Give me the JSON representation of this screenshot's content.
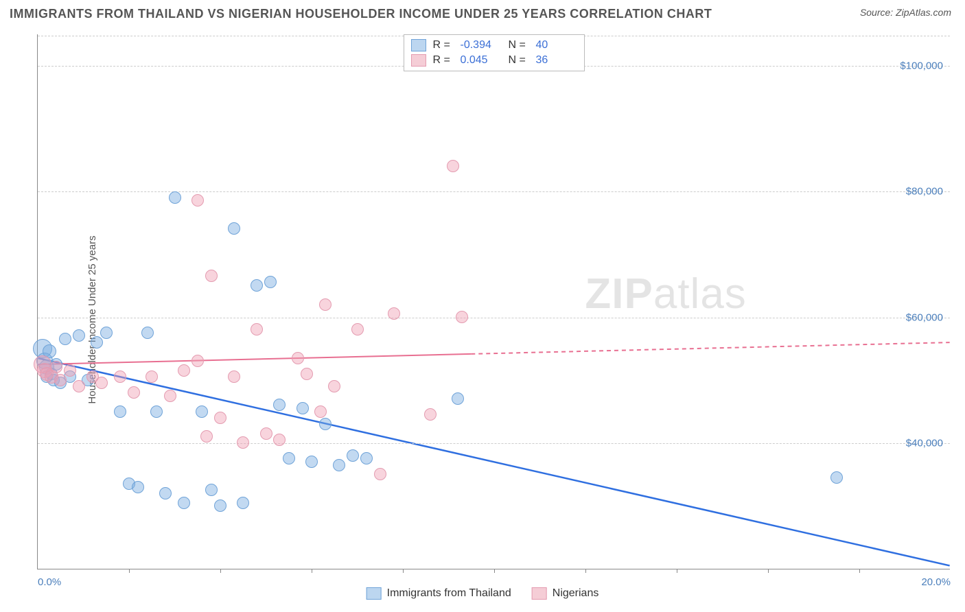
{
  "title": "IMMIGRANTS FROM THAILAND VS NIGERIAN HOUSEHOLDER INCOME UNDER 25 YEARS CORRELATION CHART",
  "source_label": "Source:",
  "source_name": "ZipAtlas.com",
  "ylabel": "Householder Income Under 25 years",
  "watermark": "ZIPatlas",
  "chart": {
    "type": "scatter",
    "background_color": "#ffffff",
    "grid_color": "#cccccc",
    "axis_color": "#888888",
    "xlim": [
      0,
      20
    ],
    "ylim": [
      20000,
      105000
    ],
    "x_tick_step": 2.0,
    "x_tick_labels": [
      {
        "x": 0.0,
        "label": "0.0%"
      },
      {
        "x": 20.0,
        "label": "20.0%"
      }
    ],
    "y_ticks": [
      {
        "y": 40000,
        "label": "$40,000"
      },
      {
        "y": 60000,
        "label": "$60,000"
      },
      {
        "y": 80000,
        "label": "$80,000"
      },
      {
        "y": 100000,
        "label": "$100,000"
      }
    ],
    "tick_label_color": "#4a7ebb",
    "label_fontsize": 15,
    "title_fontsize": 18,
    "title_color": "#555555"
  },
  "series": [
    {
      "name": "Immigrants from Thailand",
      "fill_color": "rgba(120,170,225,0.45)",
      "stroke_color": "#6fa3d8",
      "legend_swatch_fill": "#bcd6f0",
      "legend_swatch_border": "#6fa3d8",
      "marker_radius": 9,
      "r_value": "-0.394",
      "n_value": "40",
      "trend": {
        "color": "#2f6fe0",
        "width": 2.5,
        "solid_from_x": 0,
        "solid_to_x": 20,
        "y_at_x0": 53500,
        "y_at_x20": 20500
      },
      "points": [
        {
          "x": 0.1,
          "y": 55000,
          "r": 14
        },
        {
          "x": 0.15,
          "y": 53000,
          "r": 12
        },
        {
          "x": 0.2,
          "y": 52000,
          "r": 11
        },
        {
          "x": 0.25,
          "y": 54500,
          "r": 10
        },
        {
          "x": 0.3,
          "y": 51000,
          "r": 9
        },
        {
          "x": 0.35,
          "y": 50000,
          "r": 9
        },
        {
          "x": 0.4,
          "y": 52500,
          "r": 9
        },
        {
          "x": 0.5,
          "y": 49500,
          "r": 9
        },
        {
          "x": 0.6,
          "y": 56500,
          "r": 9
        },
        {
          "x": 0.7,
          "y": 50500,
          "r": 9
        },
        {
          "x": 0.9,
          "y": 57000,
          "r": 9
        },
        {
          "x": 1.1,
          "y": 50000,
          "r": 9
        },
        {
          "x": 1.3,
          "y": 56000,
          "r": 9
        },
        {
          "x": 1.5,
          "y": 57500,
          "r": 9
        },
        {
          "x": 1.8,
          "y": 45000,
          "r": 9
        },
        {
          "x": 2.0,
          "y": 33500,
          "r": 9
        },
        {
          "x": 2.2,
          "y": 33000,
          "r": 9
        },
        {
          "x": 2.4,
          "y": 57500,
          "r": 9
        },
        {
          "x": 2.6,
          "y": 45000,
          "r": 9
        },
        {
          "x": 2.8,
          "y": 32000,
          "r": 9
        },
        {
          "x": 3.0,
          "y": 79000,
          "r": 9
        },
        {
          "x": 3.2,
          "y": 30500,
          "r": 9
        },
        {
          "x": 3.6,
          "y": 45000,
          "r": 9
        },
        {
          "x": 3.8,
          "y": 32500,
          "r": 9
        },
        {
          "x": 4.0,
          "y": 30000,
          "r": 9
        },
        {
          "x": 4.3,
          "y": 74000,
          "r": 9
        },
        {
          "x": 4.5,
          "y": 30500,
          "r": 9
        },
        {
          "x": 4.8,
          "y": 65000,
          "r": 9
        },
        {
          "x": 5.1,
          "y": 65500,
          "r": 9
        },
        {
          "x": 5.3,
          "y": 46000,
          "r": 9
        },
        {
          "x": 5.5,
          "y": 37500,
          "r": 9
        },
        {
          "x": 5.8,
          "y": 45500,
          "r": 9
        },
        {
          "x": 6.0,
          "y": 37000,
          "r": 9
        },
        {
          "x": 6.3,
          "y": 43000,
          "r": 9
        },
        {
          "x": 6.6,
          "y": 36500,
          "r": 9
        },
        {
          "x": 6.9,
          "y": 38000,
          "r": 9
        },
        {
          "x": 7.2,
          "y": 37500,
          "r": 9
        },
        {
          "x": 9.2,
          "y": 47000,
          "r": 9
        },
        {
          "x": 17.5,
          "y": 34500,
          "r": 9
        },
        {
          "x": 0.2,
          "y": 50500,
          "r": 9
        }
      ]
    },
    {
      "name": "Nigerians",
      "fill_color": "rgba(240,160,180,0.45)",
      "stroke_color": "#e49bb0",
      "legend_swatch_fill": "#f5cdd6",
      "legend_swatch_border": "#e49bb0",
      "marker_radius": 9,
      "r_value": "0.045",
      "n_value": "36",
      "trend": {
        "color": "#e86f91",
        "width": 2,
        "solid_from_x": 0,
        "solid_to_x": 9.5,
        "dash_from_x": 9.5,
        "dash_to_x": 20,
        "y_at_x0": 52500,
        "y_at_x20": 56000
      },
      "points": [
        {
          "x": 0.1,
          "y": 52500,
          "r": 13
        },
        {
          "x": 0.15,
          "y": 51500,
          "r": 11
        },
        {
          "x": 0.2,
          "y": 51000,
          "r": 10
        },
        {
          "x": 0.3,
          "y": 50500,
          "r": 10
        },
        {
          "x": 0.4,
          "y": 52000,
          "r": 9
        },
        {
          "x": 0.5,
          "y": 50000,
          "r": 9
        },
        {
          "x": 0.7,
          "y": 51500,
          "r": 9
        },
        {
          "x": 0.9,
          "y": 49000,
          "r": 9
        },
        {
          "x": 1.2,
          "y": 50500,
          "r": 9
        },
        {
          "x": 1.4,
          "y": 49500,
          "r": 9
        },
        {
          "x": 1.8,
          "y": 50500,
          "r": 9
        },
        {
          "x": 2.1,
          "y": 48000,
          "r": 9
        },
        {
          "x": 2.5,
          "y": 50500,
          "r": 9
        },
        {
          "x": 2.9,
          "y": 47500,
          "r": 9
        },
        {
          "x": 3.2,
          "y": 51500,
          "r": 9
        },
        {
          "x": 3.5,
          "y": 53000,
          "r": 9
        },
        {
          "x": 3.5,
          "y": 78500,
          "r": 9
        },
        {
          "x": 3.7,
          "y": 41000,
          "r": 9
        },
        {
          "x": 3.8,
          "y": 66500,
          "r": 9
        },
        {
          "x": 4.0,
          "y": 44000,
          "r": 9
        },
        {
          "x": 4.3,
          "y": 50500,
          "r": 9
        },
        {
          "x": 4.5,
          "y": 40000,
          "r": 9
        },
        {
          "x": 4.8,
          "y": 58000,
          "r": 9
        },
        {
          "x": 5.0,
          "y": 41500,
          "r": 9
        },
        {
          "x": 5.3,
          "y": 40500,
          "r": 9
        },
        {
          "x": 5.7,
          "y": 53500,
          "r": 9
        },
        {
          "x": 5.9,
          "y": 51000,
          "r": 9
        },
        {
          "x": 6.2,
          "y": 45000,
          "r": 9
        },
        {
          "x": 6.3,
          "y": 62000,
          "r": 9
        },
        {
          "x": 6.5,
          "y": 49000,
          "r": 9
        },
        {
          "x": 7.0,
          "y": 58000,
          "r": 9
        },
        {
          "x": 7.5,
          "y": 35000,
          "r": 9
        },
        {
          "x": 7.8,
          "y": 60500,
          "r": 9
        },
        {
          "x": 8.6,
          "y": 44500,
          "r": 9
        },
        {
          "x": 9.1,
          "y": 84000,
          "r": 9
        },
        {
          "x": 9.3,
          "y": 60000,
          "r": 9
        }
      ]
    }
  ],
  "legend_top": {
    "r_label": "R =",
    "n_label": "N =",
    "stat_color": "#3b6fd6"
  },
  "legend_bottom_labels": [
    "Immigrants from Thailand",
    "Nigerians"
  ]
}
